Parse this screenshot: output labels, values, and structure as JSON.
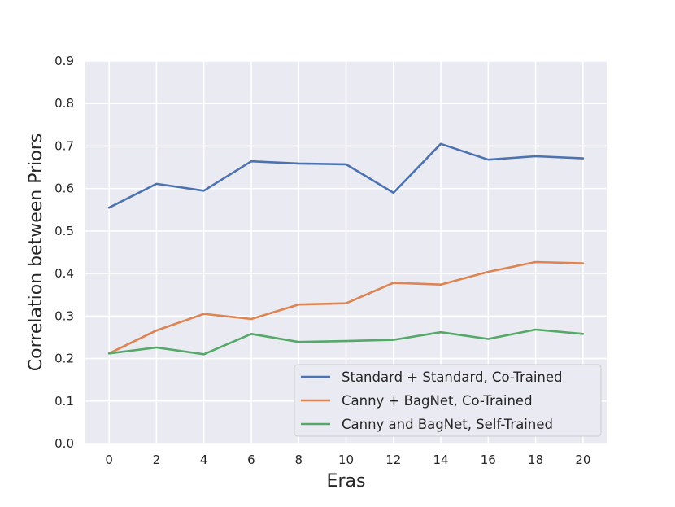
{
  "chart_data": {
    "type": "line",
    "title": "",
    "xlabel": "Eras",
    "ylabel": "Correlation between Priors",
    "x": [
      0,
      2,
      4,
      6,
      8,
      10,
      12,
      14,
      16,
      18,
      20
    ],
    "xticks": [
      "0",
      "2",
      "4",
      "6",
      "8",
      "10",
      "12",
      "14",
      "16",
      "18",
      "20"
    ],
    "yticks": [
      "0.0",
      "0.1",
      "0.2",
      "0.3",
      "0.4",
      "0.5",
      "0.6",
      "0.7",
      "0.8",
      "0.9"
    ],
    "xlim": [
      -1,
      21
    ],
    "ylim": [
      0.0,
      0.9
    ],
    "grid": true,
    "legend_position": "lower-right",
    "series": [
      {
        "name": "Standard + Standard, Co-Trained",
        "color": "#4c72b0",
        "values": [
          0.555,
          0.611,
          0.595,
          0.664,
          0.659,
          0.657,
          0.59,
          0.705,
          0.668,
          0.676,
          0.671
        ]
      },
      {
        "name": "Canny + BagNet, Co-Trained",
        "color": "#dd8452",
        "values": [
          0.212,
          0.266,
          0.305,
          0.293,
          0.327,
          0.33,
          0.378,
          0.374,
          0.404,
          0.427,
          0.424
        ]
      },
      {
        "name": "Canny and BagNet, Self-Trained",
        "color": "#55a868",
        "values": [
          0.212,
          0.226,
          0.21,
          0.258,
          0.239,
          0.241,
          0.244,
          0.262,
          0.246,
          0.268,
          0.258
        ]
      }
    ]
  }
}
